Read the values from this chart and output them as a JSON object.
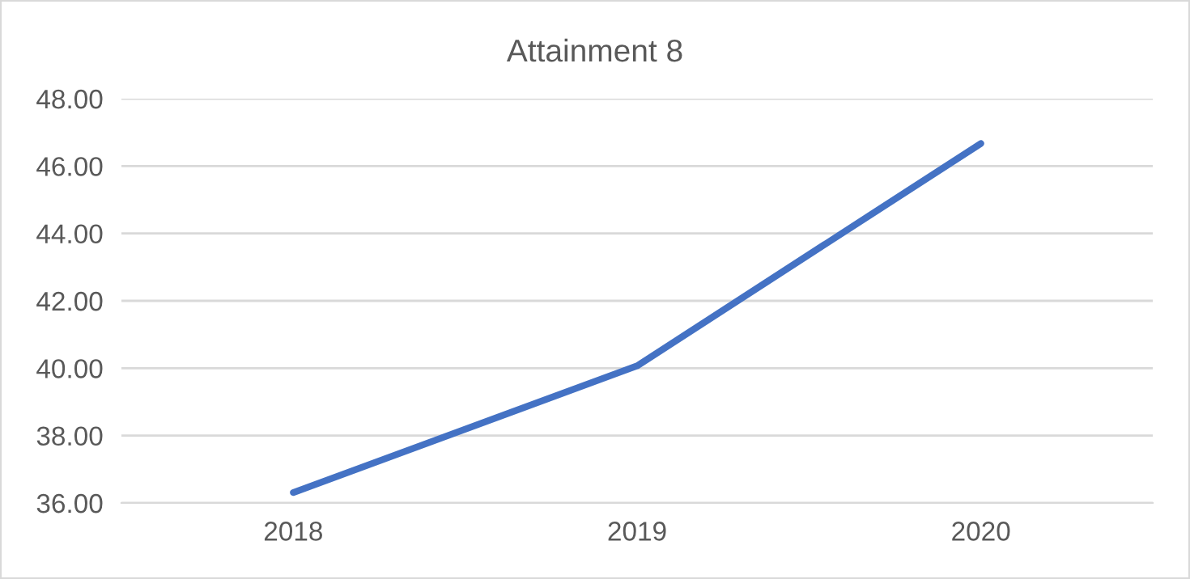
{
  "chart_data": {
    "type": "line",
    "title": "Attainment 8",
    "categories": [
      "2018",
      "2019",
      "2020"
    ],
    "series": [
      {
        "color": "#4472c4",
        "values": [
          36.31,
          40.07,
          46.67
        ]
      }
    ],
    "ylim": [
      36,
      48
    ],
    "yticks": [
      {
        "value": 36,
        "label": "36.00"
      },
      {
        "value": 38,
        "label": "38.00"
      },
      {
        "value": 40,
        "label": "40.00"
      },
      {
        "value": 42,
        "label": "42.00"
      },
      {
        "value": 44,
        "label": "44.00"
      },
      {
        "value": 46,
        "label": "46.00"
      },
      {
        "value": 48,
        "label": "48.00"
      }
    ],
    "grid": "y",
    "marker": "none",
    "line_style": "solid"
  }
}
